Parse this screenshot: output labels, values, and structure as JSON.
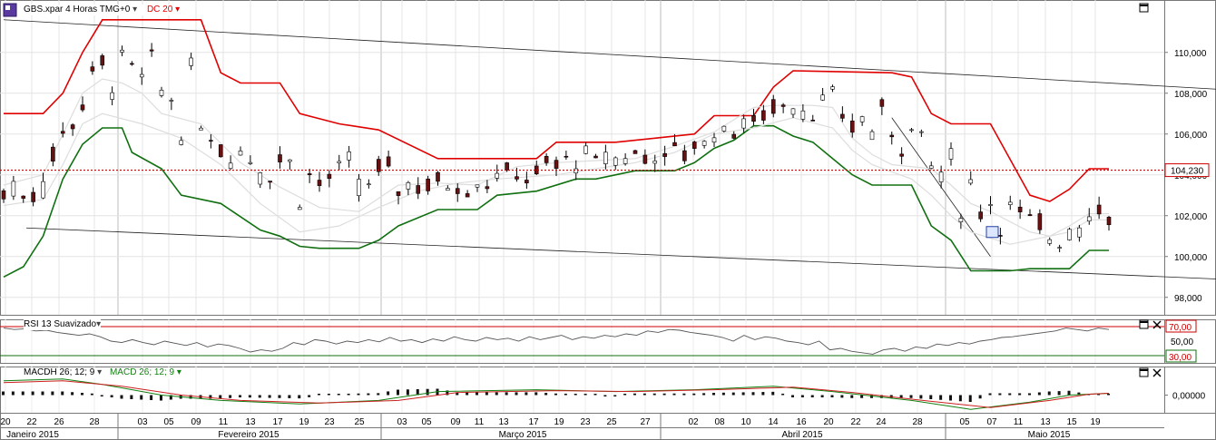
{
  "chart_title": "GBS.xpar 4 Horas TMG+0",
  "dc_label": "DC 20",
  "rsi_label": "RSI 13 Suavizado",
  "macdh_label": "MACDH 26; 12; 9",
  "macd_label": "MACD 26; 12; 9",
  "colors": {
    "upper": "#e00000",
    "lower": "#107010",
    "price_line": "#cc0000",
    "macd": "#108010",
    "signal": "#cc2020"
  },
  "chart_data": [
    {
      "type": "candlestick",
      "title": "GBS.xpar 4 Horas TMG+0",
      "ylim": [
        97.5,
        112.3
      ],
      "y_ticks": [
        "98,000",
        "100,000",
        "102,000",
        "104,000",
        "106,000",
        "108,000",
        "110,000"
      ],
      "last_price": 104.23,
      "last_price_label": "104,230",
      "grid": true,
      "date_ticks": [
        "20",
        "22",
        "26",
        "28",
        "03",
        "05",
        "09",
        "11",
        "13",
        "17",
        "19",
        "23",
        "25",
        "03",
        "05",
        "09",
        "11",
        "13",
        "17",
        "19",
        "23",
        "25",
        "27",
        "02",
        "08",
        "10",
        "14",
        "16",
        "20",
        "22",
        "24",
        "28",
        "05",
        "07",
        "11",
        "13",
        "15",
        "19"
      ],
      "months": [
        "Janeiro 2015",
        "Fevereiro 2015",
        "Março 2015",
        "Abril 2015",
        "Maio 2015"
      ],
      "series": [
        {
          "name": "DC 20 upper",
          "values": [
            [
              0,
              107
            ],
            [
              4,
              107
            ],
            [
              6,
              108
            ],
            [
              8,
              110
            ],
            [
              10,
              111.6
            ],
            [
              14,
              111.6
            ],
            [
              20,
              111.6
            ],
            [
              22,
              109
            ],
            [
              24,
              108.5
            ],
            [
              28,
              108.5
            ],
            [
              30,
              107
            ],
            [
              34,
              106.5
            ],
            [
              38,
              106.2
            ],
            [
              44,
              104.8
            ],
            [
              54,
              104.8
            ],
            [
              56,
              105.6
            ],
            [
              62,
              105.6
            ],
            [
              66,
              105.8
            ],
            [
              70,
              106
            ],
            [
              72,
              106.9
            ],
            [
              76,
              106.9
            ],
            [
              78,
              108.3
            ],
            [
              80,
              109.1
            ],
            [
              90,
              109
            ],
            [
              92,
              108.8
            ],
            [
              94,
              107
            ],
            [
              96,
              106.5
            ],
            [
              100,
              106.5
            ],
            [
              104,
              103
            ],
            [
              106,
              102.7
            ],
            [
              108,
              103.3
            ],
            [
              110,
              104.3
            ],
            [
              112,
              104.3
            ]
          ]
        },
        {
          "name": "DC 20 lower",
          "values": [
            [
              0,
              99
            ],
            [
              2,
              99.5
            ],
            [
              4,
              101
            ],
            [
              6,
              103.8
            ],
            [
              8,
              105.5
            ],
            [
              10,
              106.3
            ],
            [
              12,
              106.3
            ],
            [
              13,
              105.1
            ],
            [
              16,
              104.3
            ],
            [
              18,
              103
            ],
            [
              22,
              102.6
            ],
            [
              26,
              101.3
            ],
            [
              28,
              101
            ],
            [
              30,
              100.5
            ],
            [
              32,
              100.4
            ],
            [
              36,
              100.4
            ],
            [
              38,
              100.8
            ],
            [
              40,
              101.5
            ],
            [
              44,
              102.3
            ],
            [
              48,
              102.3
            ],
            [
              50,
              103
            ],
            [
              54,
              103.2
            ],
            [
              58,
              103.8
            ],
            [
              60,
              103.8
            ],
            [
              64,
              104.2
            ],
            [
              68,
              104.2
            ],
            [
              70,
              104.6
            ],
            [
              72,
              105.3
            ],
            [
              74,
              105.7
            ],
            [
              76,
              106.4
            ],
            [
              78,
              106.4
            ],
            [
              80,
              105.9
            ],
            [
              82,
              105.6
            ],
            [
              84,
              104.8
            ],
            [
              86,
              104
            ],
            [
              88,
              103.5
            ],
            [
              92,
              103.5
            ],
            [
              94,
              101.5
            ],
            [
              96,
              100.8
            ],
            [
              98,
              99.3
            ],
            [
              102,
              99.3
            ],
            [
              104,
              99.4
            ],
            [
              108,
              99.4
            ],
            [
              110,
              100.3
            ],
            [
              112,
              100.3
            ]
          ]
        },
        {
          "name": "DC 20 mid",
          "values": [
            [
              0,
              103.5
            ],
            [
              4,
              104
            ],
            [
              6,
              106
            ],
            [
              8,
              108
            ],
            [
              10,
              108.7
            ],
            [
              12,
              108.5
            ],
            [
              14,
              108
            ],
            [
              16,
              107
            ],
            [
              20,
              106.5
            ],
            [
              24,
              104.6
            ],
            [
              28,
              103.4
            ],
            [
              32,
              102.4
            ],
            [
              36,
              102.2
            ],
            [
              40,
              103.5
            ],
            [
              44,
              103.6
            ],
            [
              48,
              103.5
            ],
            [
              52,
              104.4
            ],
            [
              56,
              104.6
            ],
            [
              60,
              104.7
            ],
            [
              64,
              104.8
            ],
            [
              68,
              105.4
            ],
            [
              72,
              106.1
            ],
            [
              76,
              107.3
            ],
            [
              78,
              107.4
            ],
            [
              82,
              107.4
            ],
            [
              84,
              107.3
            ],
            [
              86,
              105.8
            ],
            [
              88,
              105
            ],
            [
              90,
              104.5
            ],
            [
              94,
              104.3
            ],
            [
              96,
              103.5
            ],
            [
              98,
              102.6
            ],
            [
              100,
              102.2
            ],
            [
              104,
              101.2
            ],
            [
              106,
              101
            ],
            [
              108,
              101.5
            ],
            [
              110,
              102.1
            ],
            [
              112,
              102.1
            ]
          ]
        },
        {
          "name": "DC 20 mid2",
          "values": [
            [
              0,
              102.5
            ],
            [
              4,
              102.8
            ],
            [
              6,
              104.5
            ],
            [
              8,
              106.5
            ],
            [
              10,
              107
            ],
            [
              14,
              106.5
            ],
            [
              18,
              105.8
            ],
            [
              22,
              104.5
            ],
            [
              26,
              102.6
            ],
            [
              30,
              101.2
            ],
            [
              34,
              101.5
            ],
            [
              38,
              102.4
            ],
            [
              42,
              103.2
            ],
            [
              46,
              103.6
            ],
            [
              50,
              103.8
            ],
            [
              56,
              104
            ],
            [
              60,
              104.3
            ],
            [
              64,
              104.6
            ],
            [
              68,
              105.1
            ],
            [
              72,
              106
            ],
            [
              76,
              106.3
            ],
            [
              80,
              106.8
            ],
            [
              84,
              106.3
            ],
            [
              86,
              105.2
            ],
            [
              88,
              104.5
            ],
            [
              92,
              103.8
            ],
            [
              94,
              103
            ],
            [
              96,
              102
            ],
            [
              98,
              101.2
            ],
            [
              102,
              100.6
            ],
            [
              104,
              100.8
            ],
            [
              108,
              101.2
            ],
            [
              110,
              101.8
            ],
            [
              112,
              101.8
            ]
          ]
        }
      ],
      "trendlines": [
        [
          [
            0,
            111.6
          ],
          [
            112,
            108.2
          ]
        ],
        [
          [
            2.3,
            101.4
          ],
          [
            112,
            98.9
          ]
        ],
        [
          [
            90,
            106.8
          ],
          [
            100,
            100
          ]
        ]
      ]
    },
    {
      "type": "line",
      "title": "RSI 13 Suavizado",
      "ylim": [
        20,
        80
      ],
      "y_ticks": [
        "70,00",
        "50,00",
        "30,00"
      ],
      "levels": [
        70,
        30
      ],
      "values": [
        68,
        66,
        67,
        64,
        65,
        62,
        60,
        58,
        60,
        56,
        50,
        48,
        52,
        48,
        45,
        50,
        47,
        44,
        48,
        42,
        46,
        44,
        40,
        35,
        38,
        36,
        40,
        48,
        45,
        52,
        50,
        46,
        50,
        48,
        52,
        49,
        55,
        50,
        52,
        48,
        53,
        50,
        56,
        52,
        50,
        55,
        52,
        54,
        50,
        56,
        52,
        55,
        58,
        52,
        56,
        54,
        58,
        56,
        60,
        58,
        64,
        62,
        66,
        65,
        62,
        60,
        58,
        55,
        50,
        58,
        52,
        56,
        54,
        50,
        48,
        45,
        50,
        38,
        40,
        36,
        34,
        32,
        38,
        40,
        36,
        42,
        40,
        46,
        44,
        48,
        46,
        50,
        52,
        55,
        56,
        58,
        60,
        62,
        64,
        68,
        66,
        64,
        68,
        66
      ]
    },
    {
      "type": "bar",
      "title": "MACDH 26; 12; 9",
      "ylim": [
        -1.2,
        1.2
      ],
      "y_ticks": [
        "0,00000"
      ],
      "series": [
        {
          "name": "MACD 26; 12; 9",
          "values": [
            [
              0,
              0.8
            ],
            [
              6,
              0.9
            ],
            [
              10,
              0.6
            ],
            [
              16,
              0
            ],
            [
              22,
              -0.3
            ],
            [
              30,
              -0.5
            ],
            [
              38,
              -0.3
            ],
            [
              44,
              0.2
            ],
            [
              54,
              0.3
            ],
            [
              62,
              0.2
            ],
            [
              70,
              0.3
            ],
            [
              78,
              0.5
            ],
            [
              84,
              0.2
            ],
            [
              92,
              -0.3
            ],
            [
              98,
              -0.8
            ],
            [
              104,
              -0.4
            ],
            [
              108,
              0
            ],
            [
              112,
              0.1
            ]
          ]
        },
        {
          "name": "Signal",
          "values": [
            [
              0,
              0.7
            ],
            [
              6,
              0.8
            ],
            [
              12,
              0.5
            ],
            [
              18,
              0
            ],
            [
              24,
              -0.3
            ],
            [
              32,
              -0.45
            ],
            [
              40,
              -0.3
            ],
            [
              46,
              0.15
            ],
            [
              56,
              0.25
            ],
            [
              64,
              0.2
            ],
            [
              72,
              0.3
            ],
            [
              80,
              0.45
            ],
            [
              86,
              0.15
            ],
            [
              94,
              -0.35
            ],
            [
              100,
              -0.7
            ],
            [
              106,
              -0.3
            ],
            [
              110,
              0.05
            ],
            [
              112,
              0.1
            ]
          ]
        }
      ]
    }
  ]
}
